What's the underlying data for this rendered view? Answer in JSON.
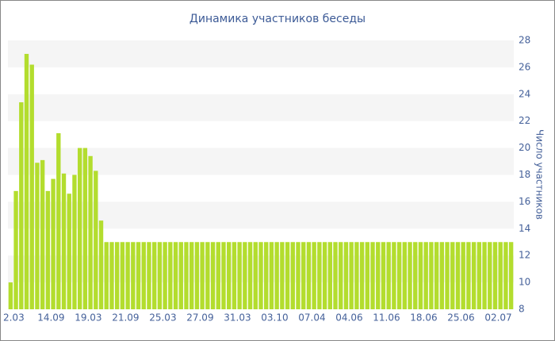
{
  "chart_data": {
    "type": "bar",
    "title": "Динамика участников беседы",
    "y_label": "Число участников",
    "color": "#b3dd2e",
    "ylim": [
      8,
      28
    ],
    "yticks": [
      8,
      10,
      12,
      14,
      16,
      18,
      20,
      22,
      24,
      26,
      28
    ],
    "alternate_bands": true,
    "categories": [
      "2.03",
      null,
      null,
      null,
      null,
      null,
      null,
      "14.09",
      null,
      null,
      null,
      null,
      null,
      null,
      "19.03",
      null,
      null,
      null,
      null,
      null,
      null,
      "21.09",
      null,
      null,
      null,
      null,
      null,
      null,
      "25.03",
      null,
      null,
      null,
      null,
      null,
      null,
      "27.09",
      null,
      null,
      null,
      null,
      null,
      null,
      "31.03",
      null,
      null,
      null,
      null,
      null,
      null,
      "03.10",
      null,
      null,
      null,
      null,
      null,
      null,
      "07.04",
      null,
      null,
      null,
      null,
      null,
      null,
      "04.06",
      null,
      null,
      null,
      null,
      null,
      null,
      "11.06",
      null,
      null,
      null,
      null,
      null,
      null,
      "18.06",
      null,
      null,
      null,
      null,
      null,
      null,
      "25.06",
      null,
      null,
      null,
      null,
      null,
      null,
      "02.07",
      null,
      null,
      null
    ],
    "values": [
      10,
      16.8,
      23.4,
      27,
      26.2,
      18.9,
      19.1,
      16.8,
      17.7,
      21.1,
      18.1,
      16.6,
      18,
      20,
      20,
      19.4,
      18.3,
      14.6,
      13,
      13,
      13,
      13,
      13,
      13,
      13,
      13,
      13,
      13,
      13,
      13,
      13,
      13,
      13,
      13,
      13,
      13,
      13,
      13,
      13,
      13,
      13,
      13,
      13,
      13,
      13,
      13,
      13,
      13,
      13,
      13,
      13,
      13,
      13,
      13,
      13,
      13,
      13,
      13,
      13,
      13,
      13,
      13,
      13,
      13,
      13,
      13,
      13,
      13,
      13,
      13,
      13,
      13,
      13,
      13,
      13,
      13,
      13,
      13,
      13,
      13,
      13,
      13,
      13,
      13,
      13,
      13,
      13,
      13,
      13,
      13,
      13,
      13,
      13,
      13,
      13
    ]
  }
}
